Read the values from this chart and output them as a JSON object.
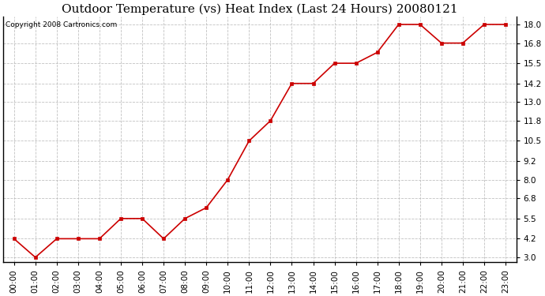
{
  "title": "Outdoor Temperature (vs) Heat Index (Last 24 Hours) 20080121",
  "copyright_text": "Copyright 2008 Cartronics.com",
  "x_labels": [
    "00:00",
    "01:00",
    "02:00",
    "03:00",
    "04:00",
    "05:00",
    "06:00",
    "07:00",
    "08:00",
    "09:00",
    "10:00",
    "11:00",
    "12:00",
    "13:00",
    "14:00",
    "15:00",
    "16:00",
    "17:00",
    "18:00",
    "19:00",
    "20:00",
    "21:00",
    "22:00",
    "23:00"
  ],
  "y_values": [
    4.2,
    3.0,
    4.2,
    4.2,
    4.2,
    5.5,
    5.5,
    4.2,
    5.5,
    6.2,
    8.0,
    10.5,
    11.8,
    14.2,
    14.2,
    15.5,
    15.5,
    16.2,
    18.0,
    18.0,
    16.8,
    16.8,
    18.0,
    18.0
  ],
  "y_ticks": [
    3.0,
    4.2,
    5.5,
    6.8,
    8.0,
    9.2,
    10.5,
    11.8,
    13.0,
    14.2,
    15.5,
    16.8,
    18.0
  ],
  "ylim": [
    2.7,
    18.5
  ],
  "line_color": "#cc0000",
  "marker": "s",
  "marker_size": 3,
  "background_color": "#ffffff",
  "grid_color": "#bbbbbb",
  "title_fontsize": 11,
  "tick_fontsize": 7.5,
  "copyright_fontsize": 6.5
}
